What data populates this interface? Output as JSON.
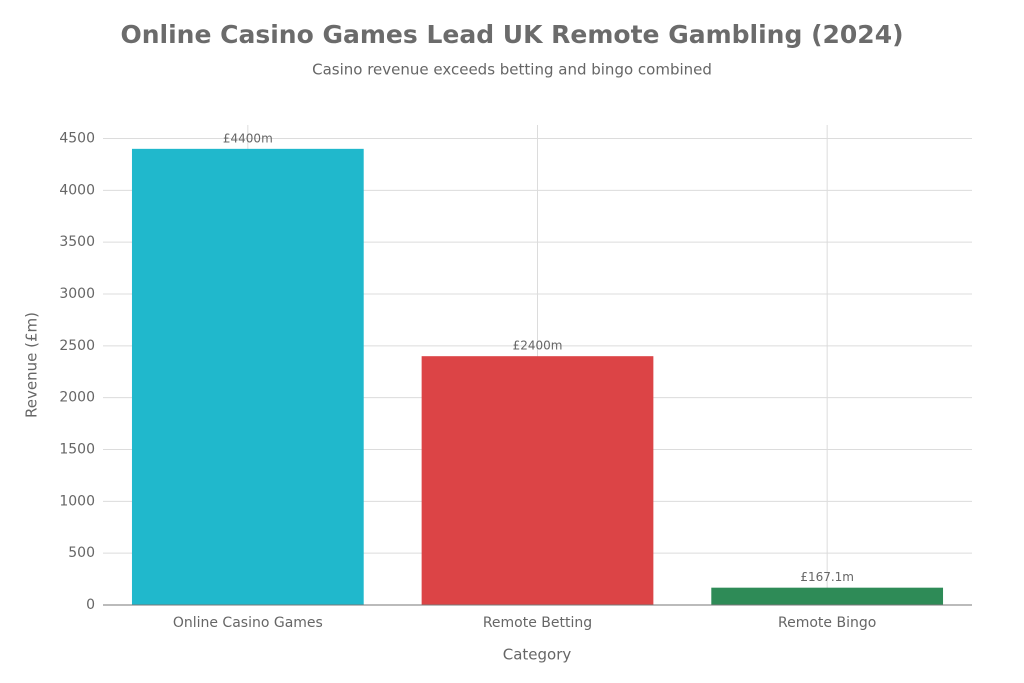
{
  "chart_data": {
    "type": "bar",
    "title": "Online Casino Games Lead UK Remote Gambling (2024)",
    "subtitle": "Casino revenue exceeds betting and bingo combined",
    "x_label": "Category",
    "y_label": "Revenue (£m)",
    "categories": [
      "Online Casino Games",
      "Remote Betting",
      "Remote Bingo"
    ],
    "values": [
      4400,
      2400,
      167.1
    ],
    "value_labels": [
      "£4400m",
      "£2400m",
      "£167.1m"
    ],
    "colors": [
      "#20b8cc",
      "#dc4446",
      "#2e8b57"
    ],
    "ylim": [
      0,
      4630
    ],
    "yticks": [
      0,
      500,
      1000,
      1500,
      2000,
      2500,
      3000,
      3500,
      4000,
      4500
    ],
    "grid": true
  }
}
